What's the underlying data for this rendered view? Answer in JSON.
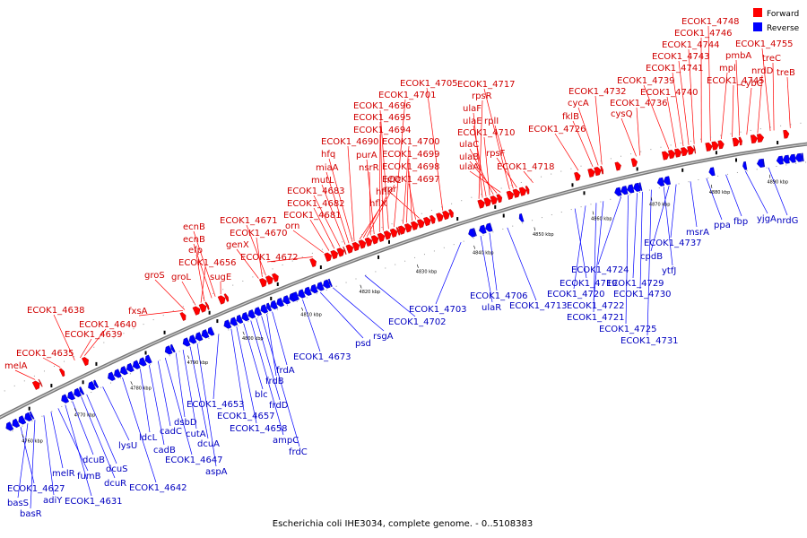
{
  "caption": "Escherichia coli IHE3034, complete genome. - 0..5108383",
  "legend": [
    {
      "label": "Forward",
      "color": "#ff0000"
    },
    {
      "label": "Reverse",
      "color": "#0000ff"
    }
  ],
  "ticks": [
    "4760 kbp",
    "4770 kbp",
    "4780 kbp",
    "4790 kbp",
    "4800 kbp",
    "4810 kbp",
    "4820 kbp",
    "4830 kbp",
    "4840 kbp",
    "4850 kbp",
    "4860 kbp",
    "4870 kbp",
    "4880 kbp",
    "4890 kbp"
  ],
  "forward_labels": [
    "melA",
    "ECOK1_4635",
    "ECOK1_4639",
    "ECOK1_4640",
    "ECOK1_4638",
    "fxsA",
    "groS",
    "groL",
    "ECOK1_4656",
    "efp",
    "ecnB",
    "ecnB",
    "sugE",
    "genX",
    "ECOK1_4670",
    "ECOK1_4671",
    "ECOK1_4672",
    "orn",
    "ECOK1_4681",
    "ECOK1_4682",
    "ECOK1_4683",
    "mutL",
    "miaA",
    "hfq",
    "ECOK1_4690",
    "hflX",
    "hflK",
    "hflC",
    "nsrR",
    "purA",
    "ECOK1_4694",
    "ECOK1_4695",
    "ECOK1_4696",
    "ECOK1_4701",
    "ECOK1_4705",
    "ECOK1_4700",
    "ECOK1_4699",
    "ECOK1_4698",
    "ECOK1_4697",
    "rnr",
    "rpsR",
    "ulaF",
    "ulaE",
    "ECOK1_4710",
    "ulaC",
    "ulaB",
    "ulaA",
    "ECOK1_4717",
    "rplI",
    "rpsF",
    "ECOK1_4718",
    "ECOK1_4726",
    "fklB",
    "cycA",
    "ECOK1_4732",
    "cysQ",
    "ECOK1_4736",
    "ECOK1_4739",
    "ECOK1_4740",
    "ECOK1_4741",
    "ECOK1_4743",
    "ECOK1_4744",
    "ECOK1_4746",
    "ECOK1_4748",
    "mpl",
    "ECOK1_4745",
    "pmbA",
    "cybC",
    "nrdD",
    "ECOK1_4755",
    "treC",
    "treB"
  ],
  "reverse_labels": [
    "ECOK1_4627",
    "basS",
    "basR",
    "adiY",
    "melR",
    "fumB",
    "ECOK1_4631",
    "dcuB",
    "dcuR",
    "dcuS",
    "lysU",
    "ECOK1_4642",
    "ldcL",
    "cadB",
    "cadC",
    "ECOK1_4647",
    "dsbD",
    "cutA",
    "dcuA",
    "aspA",
    "ECOK1_4653",
    "ECOK1_4657",
    "ECOK1_4658",
    "blc",
    "ampC",
    "frdD",
    "frdC",
    "frdB",
    "frdA",
    "ECOK1_4673",
    "psd",
    "rsgA",
    "ECOK1_4702",
    "ECOK1_4703",
    "ulaR",
    "ECOK1_4706",
    "ECOK1_4713",
    "ECOK1_4719",
    "ECOK1_4720",
    "ECOK1_4721",
    "ECOK1_4722",
    "ECOK1_4724",
    "ECOK1_4725",
    "ECOK1_4729",
    "ECOK1_4730",
    "ECOK1_4731",
    "ytfJ",
    "cpdB",
    "ECOK1_4737",
    "msrA",
    "ppa",
    "fbp",
    "yjgA",
    "nrdG"
  ]
}
